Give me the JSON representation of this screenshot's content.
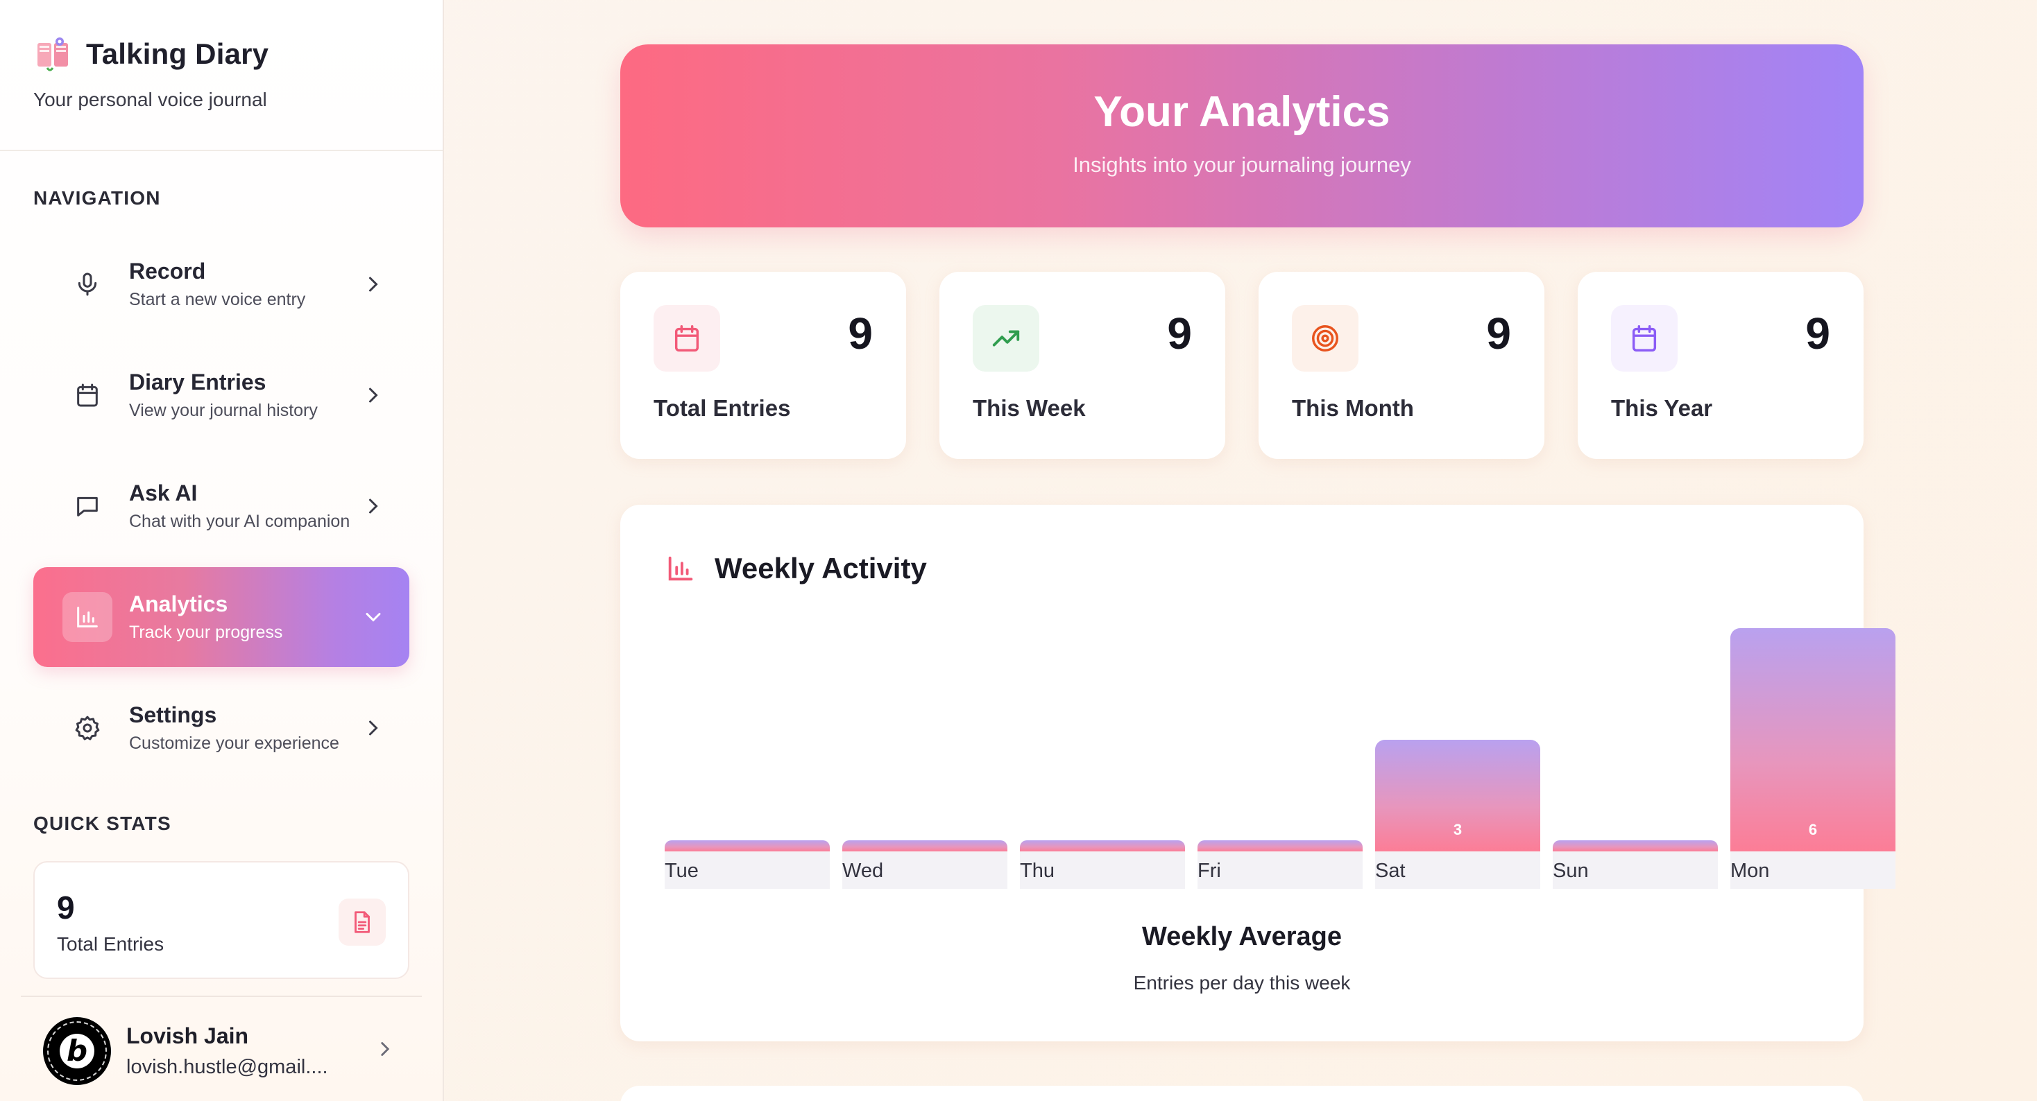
{
  "app": {
    "title": "Talking Diary",
    "subtitle": "Your personal voice journal"
  },
  "navigation": {
    "label": "NAVIGATION",
    "items": [
      {
        "title": "Record",
        "subtitle": "Start a new voice entry",
        "icon": "microphone-icon",
        "active": false
      },
      {
        "title": "Diary Entries",
        "subtitle": "View your journal history",
        "icon": "calendar-icon",
        "active": false
      },
      {
        "title": "Ask AI",
        "subtitle": "Chat with your AI companion",
        "icon": "chat-icon",
        "active": false
      },
      {
        "title": "Analytics",
        "subtitle": "Track your progress",
        "icon": "bar-chart-icon",
        "active": true
      },
      {
        "title": "Settings",
        "subtitle": "Customize your experience",
        "icon": "gear-icon",
        "active": false
      }
    ]
  },
  "quick_stats": {
    "label": "QUICK STATS",
    "value": "9",
    "caption": "Total Entries",
    "icon": "document-icon"
  },
  "user": {
    "name": "Lovish Jain",
    "email": "lovish.hustle@gmail....",
    "avatar_letter": "b"
  },
  "hero": {
    "title": "Your Analytics",
    "subtitle": "Insights into your journaling journey"
  },
  "stats": [
    {
      "label": "Total Entries",
      "value": "9",
      "icon": "calendar-icon",
      "color": "#f25a78",
      "bg": "#fdeff1"
    },
    {
      "label": "This Week",
      "value": "9",
      "icon": "trending-up-icon",
      "color": "#2f9d4e",
      "bg": "#ecf7ee"
    },
    {
      "label": "This Month",
      "value": "9",
      "icon": "target-icon",
      "color": "#e8541e",
      "bg": "#fdf1ea"
    },
    {
      "label": "This Year",
      "value": "9",
      "icon": "calendar-icon",
      "color": "#8b5cf6",
      "bg": "#f6f1fe"
    }
  ],
  "activity": {
    "title": "Weekly Activity",
    "icon": "bar-chart-icon",
    "average_title": "Weekly Average",
    "average_subtitle": "Entries per day this week"
  },
  "chart_data": {
    "type": "bar",
    "title": "Weekly Activity",
    "categories": [
      "Tue",
      "Wed",
      "Thu",
      "Fri",
      "Sat",
      "Sun",
      "Mon"
    ],
    "values": [
      0,
      0,
      0,
      0,
      3,
      0,
      6
    ],
    "value_labels": [
      "",
      "",
      "",
      "",
      "3",
      "",
      "6"
    ],
    "ylim": [
      0,
      6
    ],
    "grid": false,
    "colors": {
      "top": "#b9a1ef",
      "bottom": "#fc7d96"
    }
  },
  "theme": {
    "accent_pink": "#fb6f8d",
    "accent_purple": "#a583f2",
    "background": "#fcf5ef"
  }
}
